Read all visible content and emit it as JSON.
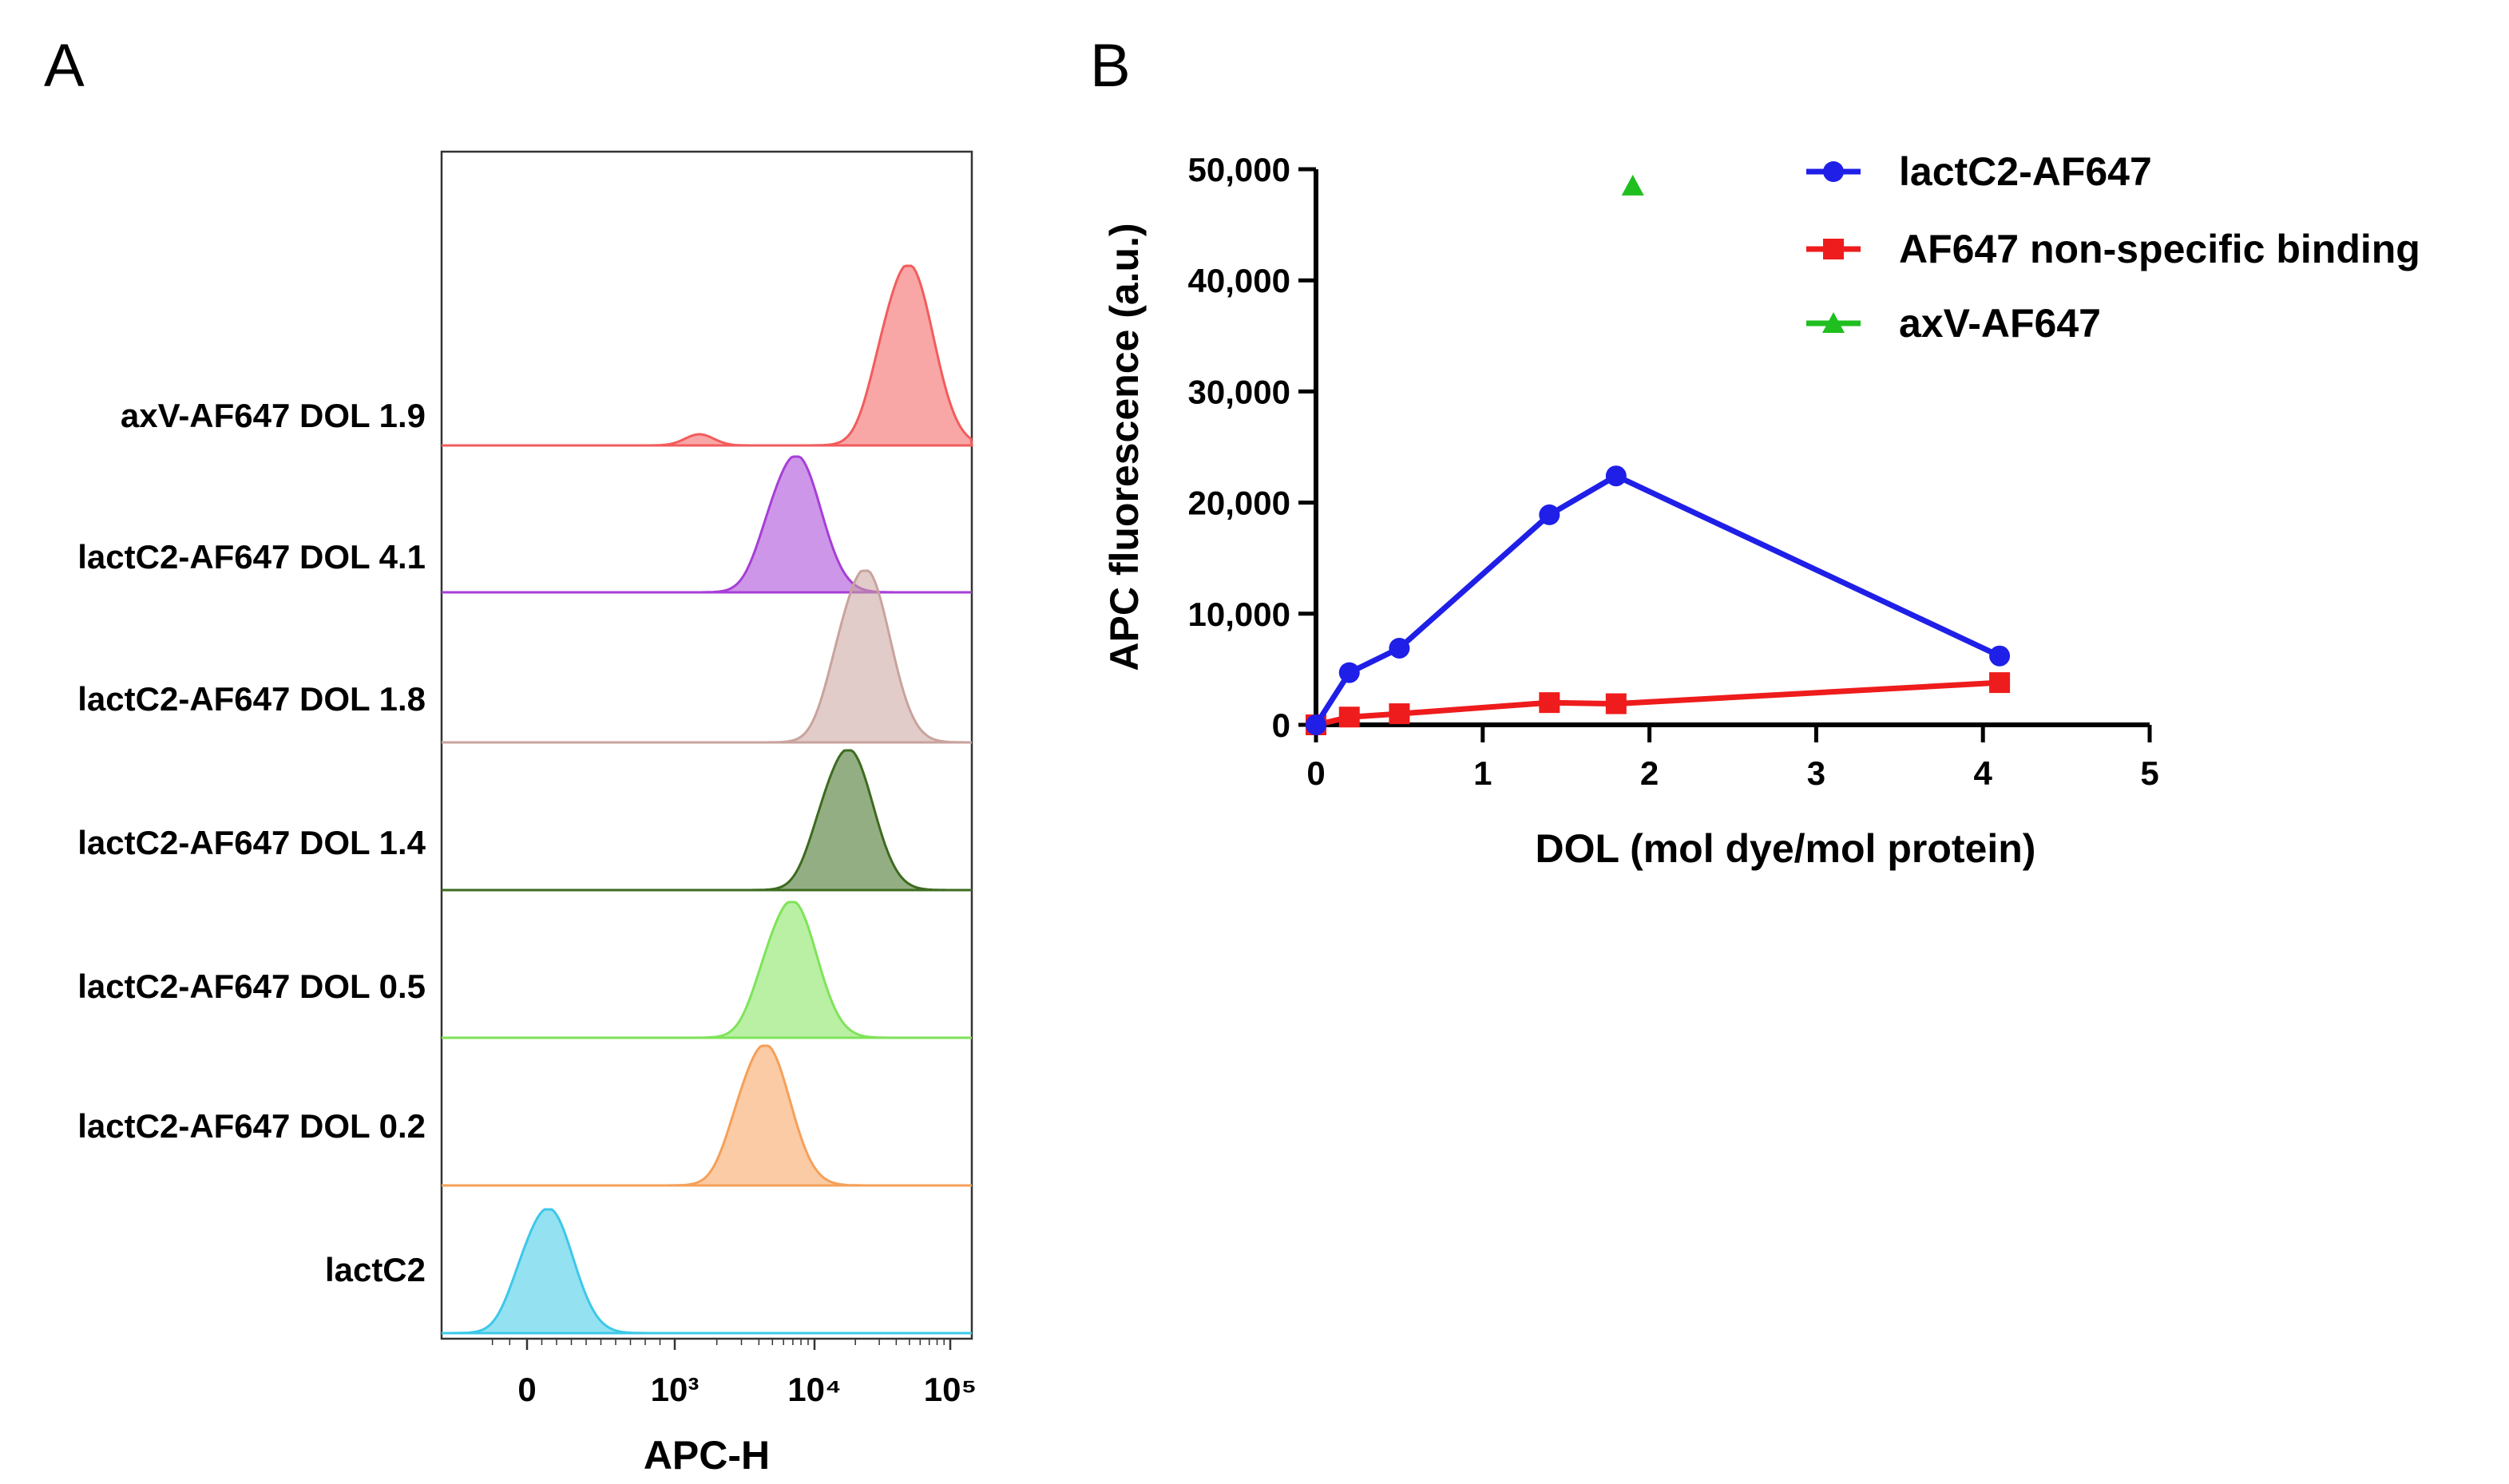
{
  "chart_data": [
    {
      "panel": "A",
      "type": "histogram",
      "title": "",
      "xlabel": "APC-H",
      "ylabel": "",
      "x_scale": "biexponential",
      "x_ticks": [
        {
          "value": 0,
          "label": "0"
        },
        {
          "value": 1000,
          "label": "10³"
        },
        {
          "value": 10000,
          "label": "10⁴"
        },
        {
          "value": 100000,
          "label": "10⁵"
        }
      ],
      "rows": [
        {
          "label": "axV-AF647 DOL 1.9",
          "color": "#f25c5c",
          "peak_apc": 50000,
          "minor_peak_apc": 1500
        },
        {
          "label": "lactC2-AF647 DOL 4.1",
          "color": "#a63fd6",
          "peak_apc": 7500
        },
        {
          "label": "lactC2-AF647 DOL 1.8",
          "color": "#c9a39c",
          "peak_apc": 24000
        },
        {
          "label": "lactC2-AF647 DOL 1.4",
          "color": "#3d6b1f",
          "peak_apc": 18000
        },
        {
          "label": "lactC2-AF647 DOL 0.5",
          "color": "#7fe35a",
          "peak_apc": 7000
        },
        {
          "label": "lactC2-AF647 DOL 0.2",
          "color": "#f5a05a",
          "peak_apc": 4500
        },
        {
          "label": "lactC2",
          "color": "#3cc8e8",
          "peak_apc": 150
        }
      ]
    },
    {
      "panel": "B",
      "type": "line",
      "title": "",
      "xlabel": "DOL (mol dye/mol protein)",
      "ylabel": "APC fluorescence (a.u.)",
      "xlim": [
        0,
        5
      ],
      "ylim": [
        0,
        50000
      ],
      "x_ticks": [
        "0",
        "1",
        "2",
        "3",
        "4",
        "5"
      ],
      "y_ticks": [
        "0",
        "10,000",
        "20,000",
        "30,000",
        "40,000",
        "50,000"
      ],
      "legend_position": "top-right",
      "series": [
        {
          "name": "lactC2-AF647",
          "color": "#1f1fe8",
          "marker": "circle",
          "x": [
            0,
            0.2,
            0.5,
            1.4,
            1.8,
            4.1
          ],
          "y": [
            0,
            4700,
            6900,
            18900,
            22400,
            6200
          ]
        },
        {
          "name": "AF647 non-specific binding",
          "color": "#ee1c1c",
          "marker": "square",
          "x": [
            0,
            0.2,
            0.5,
            1.4,
            1.8,
            4.1
          ],
          "y": [
            0,
            700,
            1000,
            2000,
            1900,
            3800
          ]
        },
        {
          "name": "axV-AF647",
          "color": "#1fbf1f",
          "marker": "triangle",
          "x": [
            1.9
          ],
          "y": [
            48500
          ]
        }
      ]
    }
  ]
}
